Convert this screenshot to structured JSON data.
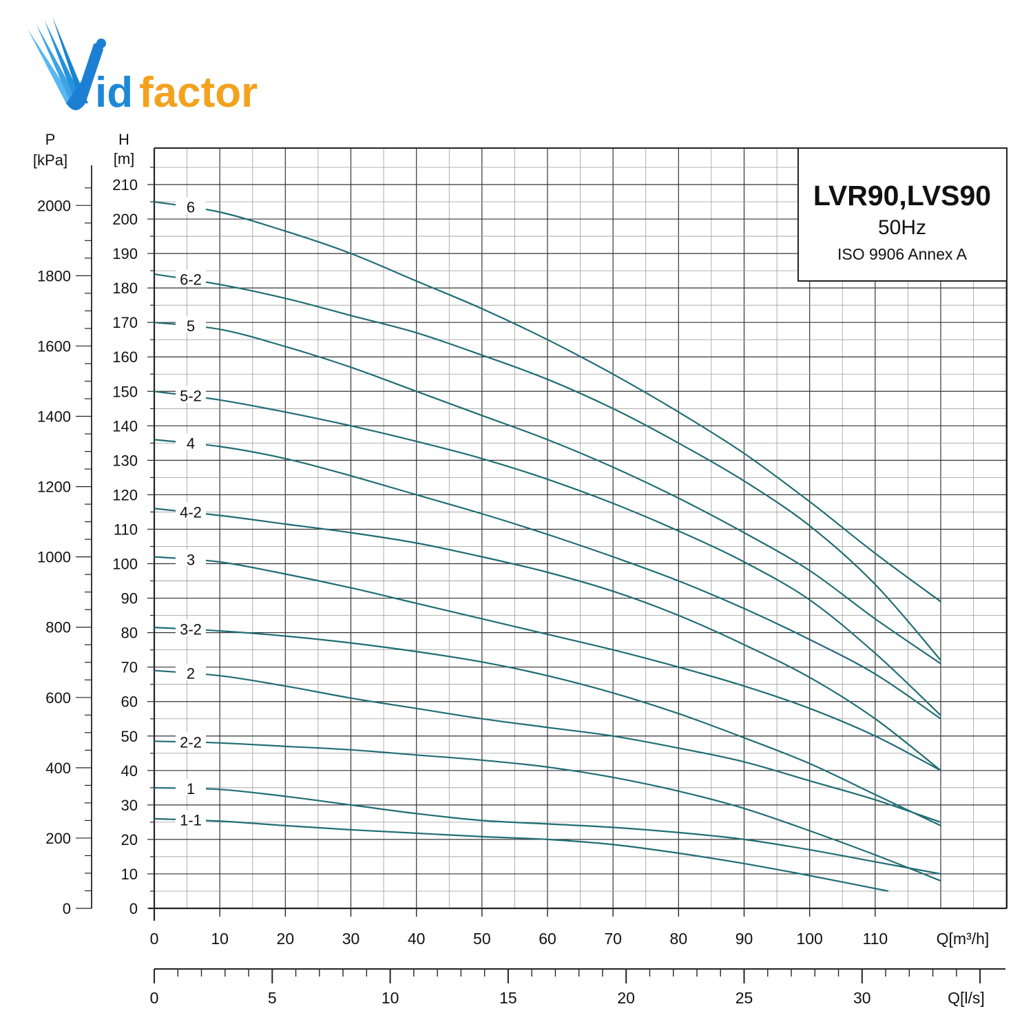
{
  "logo": {
    "text_prefix": "id",
    "text_suffix": "factor",
    "colors": {
      "blue": "#1f88d6",
      "orange": "#f3a21e"
    }
  },
  "header_box": {
    "title": "LVR90,LVS90",
    "frequency": "50Hz",
    "standard": "ISO 9906 Annex A"
  },
  "axes": {
    "p_label": "P",
    "p_unit": "[kPa]",
    "h_label": "H",
    "h_unit": "[m]",
    "q_m3h_label": "Q[m³/h]",
    "q_ls_label": "Q[l/s]"
  },
  "colors": {
    "curve": "#1f6d73"
  },
  "chart_data": {
    "type": "line",
    "title": "LVR90,LVS90",
    "x_unit": "m³/h",
    "y_unit": "m",
    "xlim": [
      0,
      130
    ],
    "ylim": [
      0,
      220
    ],
    "x_ticks": [
      0,
      10,
      20,
      30,
      40,
      50,
      60,
      70,
      80,
      90,
      100,
      110
    ],
    "y_ticks": [
      0,
      10,
      20,
      30,
      40,
      50,
      60,
      70,
      80,
      90,
      100,
      110,
      120,
      130,
      140,
      150,
      160,
      170,
      180,
      190,
      200,
      210
    ],
    "pressure_ticks_kpa": [
      0,
      200,
      400,
      600,
      800,
      1000,
      1200,
      1400,
      1600,
      1800,
      2000
    ],
    "ls_ticks": [
      0,
      5,
      10,
      15,
      20,
      25,
      30
    ],
    "grid": true,
    "series": [
      {
        "name": "6",
        "x": [
          0,
          10,
          20,
          30,
          40,
          50,
          60,
          70,
          80,
          90,
          100,
          110,
          120
        ],
        "y": [
          205,
          202,
          196.5,
          190,
          182,
          174,
          165,
          155,
          144,
          132,
          118,
          103,
          89
        ]
      },
      {
        "name": "6-2",
        "x": [
          0,
          10,
          20,
          30,
          40,
          50,
          60,
          70,
          80,
          90,
          100,
          110,
          120
        ],
        "y": [
          184,
          181,
          177,
          172,
          167,
          160.5,
          153.5,
          145,
          135,
          124,
          111,
          94,
          72
        ]
      },
      {
        "name": "5",
        "x": [
          0,
          10,
          20,
          30,
          40,
          50,
          60,
          70,
          80,
          90,
          100,
          110,
          120
        ],
        "y": [
          170,
          168,
          163,
          157,
          150,
          143,
          136,
          128,
          119,
          109,
          98,
          84,
          71
        ]
      },
      {
        "name": "5-2",
        "x": [
          0,
          10,
          20,
          30,
          40,
          50,
          60,
          70,
          80,
          90,
          100,
          110,
          120
        ],
        "y": [
          150,
          147.5,
          144,
          140,
          135.5,
          130.5,
          124.5,
          117.5,
          109.5,
          100.5,
          89.5,
          74,
          56
        ]
      },
      {
        "name": "4",
        "x": [
          0,
          10,
          20,
          30,
          40,
          50,
          60,
          70,
          80,
          90,
          100,
          110,
          120
        ],
        "y": [
          136,
          134,
          130.5,
          125.5,
          120,
          114.5,
          108.5,
          102,
          95,
          87,
          78,
          68,
          55
        ]
      },
      {
        "name": "4-2",
        "x": [
          0,
          10,
          20,
          30,
          40,
          50,
          60,
          70,
          80,
          90,
          100,
          110,
          120
        ],
        "y": [
          116,
          114,
          111.5,
          109,
          106,
          102,
          97.5,
          92,
          85,
          76.5,
          67,
          55,
          40
        ]
      },
      {
        "name": "3",
        "x": [
          0,
          10,
          20,
          30,
          40,
          50,
          60,
          70,
          80,
          90,
          100,
          110,
          120
        ],
        "y": [
          102,
          100.5,
          97,
          93,
          88.5,
          84,
          79.5,
          75,
          70,
          64.5,
          58,
          50,
          40
        ]
      },
      {
        "name": "3-2",
        "x": [
          0,
          10,
          20,
          30,
          40,
          50,
          60,
          70,
          80,
          90,
          100,
          110,
          120
        ],
        "y": [
          81.5,
          80.5,
          79,
          77,
          74.5,
          71.5,
          67.5,
          62.5,
          56.5,
          49.5,
          42,
          33,
          24
        ]
      },
      {
        "name": "2",
        "x": [
          0,
          10,
          20,
          30,
          40,
          50,
          60,
          70,
          80,
          90,
          100,
          110,
          120
        ],
        "y": [
          69,
          67.5,
          64.5,
          61,
          58,
          55,
          52.5,
          50,
          46.5,
          42.5,
          37,
          31.5,
          25
        ]
      },
      {
        "name": "2-2",
        "x": [
          0,
          10,
          20,
          30,
          40,
          50,
          60,
          70,
          80,
          90,
          100,
          110,
          120
        ],
        "y": [
          48.5,
          48,
          47,
          46,
          44.5,
          43,
          41,
          38,
          34,
          29,
          22.5,
          15.5,
          8
        ]
      },
      {
        "name": "1",
        "x": [
          0,
          10,
          20,
          30,
          40,
          50,
          60,
          70,
          80,
          90,
          100,
          110,
          120
        ],
        "y": [
          35,
          34.5,
          32.5,
          30,
          27.5,
          25.5,
          24.5,
          23.5,
          22,
          20,
          17,
          13.5,
          10
        ]
      },
      {
        "name": "1-1",
        "x": [
          0,
          10,
          20,
          30,
          40,
          50,
          60,
          70,
          80,
          90,
          100,
          112
        ],
        "y": [
          26,
          25.3,
          24,
          22.8,
          21.8,
          20.8,
          20,
          18.5,
          16,
          13,
          9.5,
          5
        ]
      }
    ]
  }
}
